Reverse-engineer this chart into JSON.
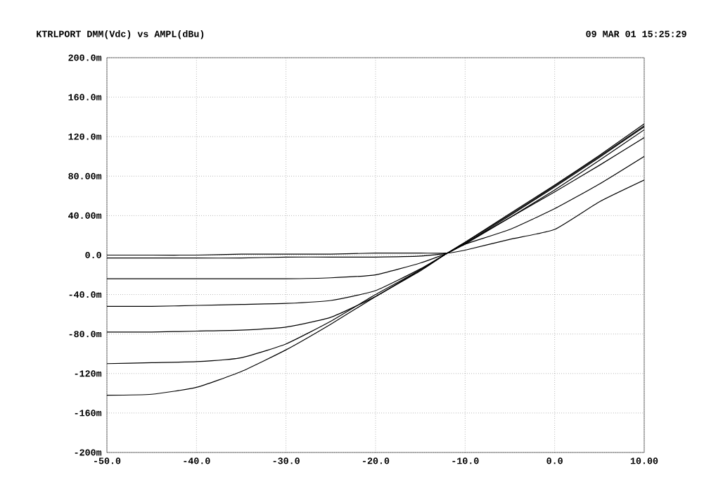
{
  "chart_data": {
    "type": "line",
    "title": "KTRLPORT DMM(Vdc) vs AMPL(dBu)",
    "subtitle": "09 MAR 01 15:25:29",
    "xlim": [
      -50,
      10
    ],
    "xticks": [
      {
        "value": -50,
        "label": "-50.0"
      },
      {
        "value": -40,
        "label": "-40.0"
      },
      {
        "value": -30,
        "label": "-30.0"
      },
      {
        "value": -20,
        "label": "-20.0"
      },
      {
        "value": -10,
        "label": "-10.0"
      },
      {
        "value": 0,
        "label": "0.0"
      },
      {
        "value": 10,
        "label": "10.00"
      }
    ],
    "ylim": [
      -200,
      200
    ],
    "yticks": [
      {
        "value": -200,
        "label": "-200m"
      },
      {
        "value": -160,
        "label": "-160m"
      },
      {
        "value": -120,
        "label": "-120m"
      },
      {
        "value": -80,
        "label": "-80.0m"
      },
      {
        "value": -40,
        "label": "-40.0m"
      },
      {
        "value": 0,
        "label": "0.0"
      },
      {
        "value": 40,
        "label": "40.00m"
      },
      {
        "value": 80,
        "label": "80.00m"
      },
      {
        "value": 120,
        "label": "120.0m"
      },
      {
        "value": 160,
        "label": "160.0m"
      },
      {
        "value": 200,
        "label": "200.0m"
      }
    ],
    "grid": true,
    "marker": "none",
    "line_style": "solid",
    "x": [
      -50,
      -45,
      -40,
      -35,
      -30,
      -25,
      -20,
      -15,
      -12,
      -10,
      -5,
      0,
      5,
      10
    ],
    "series": [
      {
        "color": "#000000",
        "values": [
          0,
          0,
          0,
          1,
          1,
          1,
          2,
          2,
          2,
          5,
          16,
          26,
          54,
          76
        ]
      },
      {
        "color": "#000000",
        "values": [
          -3,
          -3,
          -3,
          -3,
          -2,
          -2,
          -2,
          -1,
          2,
          12,
          38,
          64,
          91,
          119
        ]
      },
      {
        "color": "#000000",
        "values": [
          -24,
          -24,
          -24,
          -24,
          -24,
          -23,
          -20,
          -8,
          2,
          11,
          26,
          47,
          72,
          100
        ]
      },
      {
        "color": "#000000",
        "values": [
          -52,
          -52,
          -51,
          -50,
          -49,
          -46,
          -36,
          -14,
          2,
          11,
          38,
          66,
          96,
          127
        ]
      },
      {
        "color": "#000000",
        "values": [
          -78,
          -78,
          -77,
          -76,
          -73,
          -63,
          -42,
          -15,
          2,
          12,
          40,
          69,
          99,
          130
        ]
      },
      {
        "color": "#000000",
        "values": [
          -110,
          -109,
          -108,
          -104,
          -90,
          -67,
          -40,
          -15,
          2,
          13,
          41,
          70,
          100,
          131
        ]
      },
      {
        "color": "#000000",
        "values": [
          -142,
          -141,
          -134,
          -118,
          -96,
          -70,
          -42,
          -16,
          2,
          13,
          42,
          71,
          101,
          133
        ]
      }
    ]
  }
}
